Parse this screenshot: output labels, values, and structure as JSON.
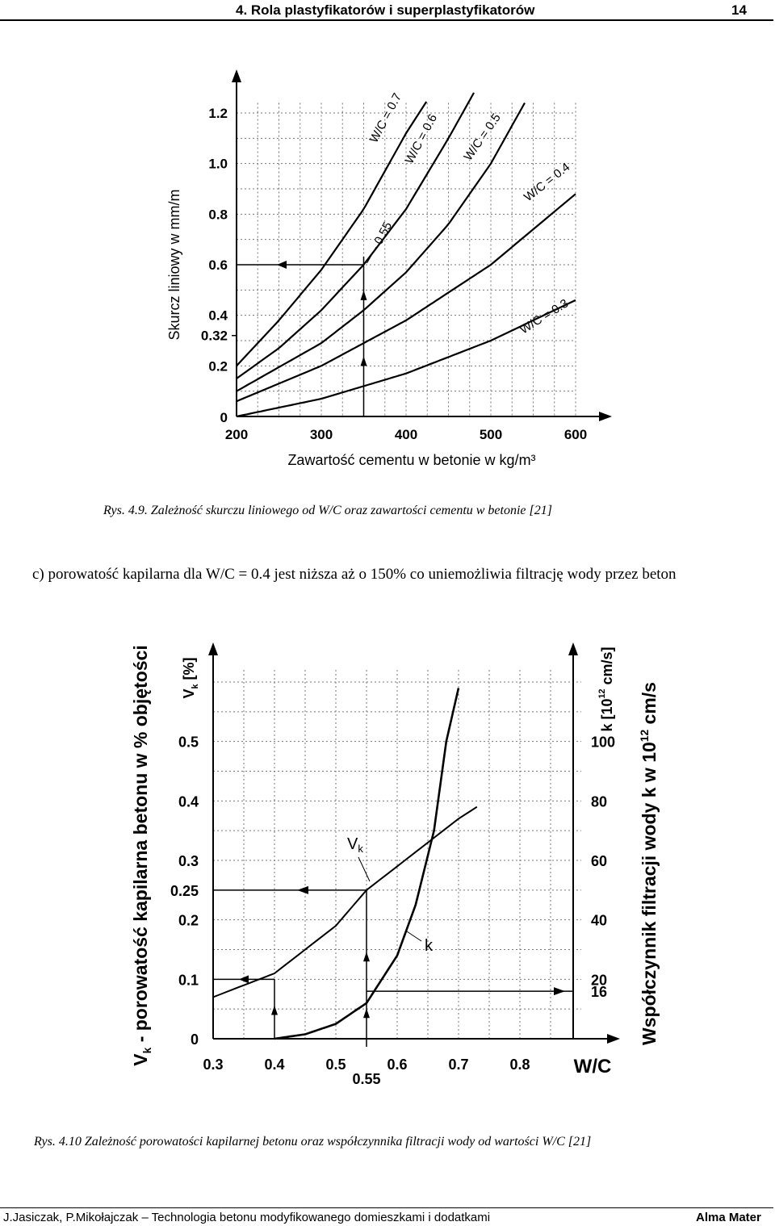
{
  "header": {
    "title": "4. Rola plastyfikatorów i superplastyfikatorów",
    "page": "14"
  },
  "figure1": {
    "caption": "Rys. 4.9. Zależność skurczu liniowego od W/C oraz zawartości cementu w betonie [21]",
    "chart_data": {
      "type": "line",
      "xlabel": "Zawartość cementu w betonie w kg/m³",
      "ylabel": "Skurcz liniowy w mm/m",
      "x_ticks": [
        "200",
        "300",
        "400",
        "500",
        "600"
      ],
      "y_ticks": [
        "0",
        "0.2",
        "0.32",
        "0.4",
        "0.6",
        "0.8",
        "1.0",
        "1.2"
      ],
      "xlim": [
        200,
        640
      ],
      "ylim": [
        0,
        1.25
      ],
      "series": [
        {
          "name": "W/C = 0.7",
          "x": [
            200,
            250,
            300,
            350,
            400,
            425
          ],
          "y": [
            0.2,
            0.38,
            0.58,
            0.82,
            1.12,
            1.25
          ]
        },
        {
          "name": "W/C = 0.6",
          "x": [
            200,
            250,
            300,
            350,
            400,
            450,
            480
          ],
          "y": [
            0.15,
            0.27,
            0.42,
            0.6,
            0.82,
            1.1,
            1.28
          ]
        },
        {
          "name": "W/C = 0.5",
          "x": [
            200,
            300,
            350,
            400,
            450,
            500,
            540
          ],
          "y": [
            0.1,
            0.29,
            0.42,
            0.57,
            0.76,
            1.0,
            1.24
          ]
        },
        {
          "name": "W/C = 0.4",
          "x": [
            200,
            300,
            400,
            500,
            600
          ],
          "y": [
            0.06,
            0.2,
            0.38,
            0.6,
            0.88
          ]
        },
        {
          "name": "W/C = 0.3",
          "x": [
            200,
            300,
            400,
            500,
            600
          ],
          "y": [
            0.0,
            0.07,
            0.17,
            0.3,
            0.46
          ]
        }
      ],
      "annotations": [
        {
          "text": "0.55",
          "x": 350,
          "y": 0.6
        }
      ],
      "reference": {
        "x": 350,
        "y": 0.6
      },
      "grid": true
    }
  },
  "paragraph": "c) porowatość kapilarna dla W/C = 0.4 jest niższa aż o 150% co uniemożliwia filtrację wody przez beton",
  "figure2": {
    "caption": "Rys. 4.10 Zależność porowatości kapilarnej betonu oraz współczynnika filtracji wody od wartości W/C [21]",
    "chart_data": {
      "type": "line",
      "xlabel": "W/C",
      "ylabel_outer": "V",
      "ylabel_outer_sub": "k",
      "ylabel_outer_rest": " - porowatość kapilarna betonu w % objętości",
      "ylabel_inner": "V",
      "ylabel_inner_sub": "k",
      "ylabel_inner_rest": " [%]",
      "ylabel_right_inner": "k [10",
      "ylabel_right_inner_sup": "12",
      "ylabel_right_inner_rest": " cm/s]",
      "ylabel_right_outer": "Współczynnik filtracji wody k w 10",
      "ylabel_right_outer_sup": "12",
      "ylabel_right_outer_rest": " cm/s",
      "x_ticks": [
        "0.3",
        "0.4",
        "0.5",
        "0.6",
        "0.7",
        "0.8"
      ],
      "x_extra_tick": "0.55",
      "y_ticks": [
        "0",
        "0.1",
        "0.2",
        "0.25",
        "0.3",
        "0.4",
        "0.5"
      ],
      "y2_ticks": [
        "16",
        "20",
        "40",
        "60",
        "80",
        "100"
      ],
      "xlim": [
        0.3,
        0.9
      ],
      "ylim": [
        0,
        0.6
      ],
      "y2lim": [
        0,
        120
      ],
      "series": [
        {
          "name": "V",
          "sub": "k",
          "x": [
            0.3,
            0.35,
            0.4,
            0.45,
            0.5,
            0.55,
            0.6,
            0.65,
            0.7,
            0.73
          ],
          "y": [
            0.07,
            0.09,
            0.11,
            0.15,
            0.19,
            0.25,
            0.29,
            0.33,
            0.37,
            0.39
          ]
        },
        {
          "name": "k",
          "x": [
            0.4,
            0.45,
            0.5,
            0.55,
            0.6,
            0.63,
            0.66,
            0.68,
            0.7
          ],
          "y": [
            0,
            1.5,
            5,
            12,
            28,
            45,
            70,
            100,
            118
          ]
        }
      ],
      "grid": true
    }
  },
  "footer": {
    "left": "J.Jasiczak, P.Mikołajczak – Technologia betonu modyfikowanego domieszkami i dodatkami",
    "right": "Alma Mater"
  }
}
